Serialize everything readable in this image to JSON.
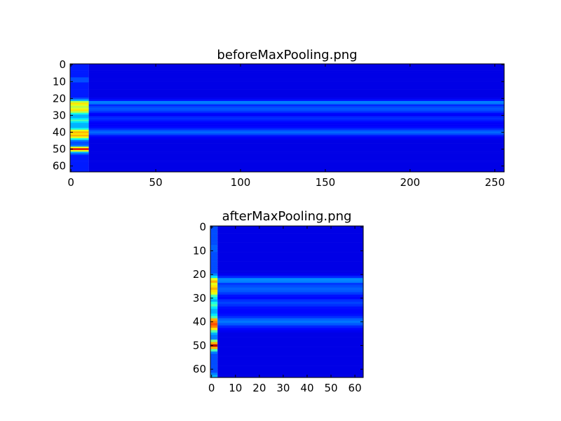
{
  "chart_data": [
    {
      "type": "heatmap",
      "title": "beforeMaxPooling.png",
      "colormap": "jet",
      "shape": [
        64,
        256
      ],
      "xlim": [
        -0.5,
        255.5
      ],
      "ylim": [
        63.5,
        -0.5
      ],
      "xticks": [
        0,
        50,
        100,
        150,
        200,
        250
      ],
      "yticks": [
        0,
        10,
        20,
        30,
        40,
        50,
        60
      ],
      "strip_columns": [
        0,
        10
      ],
      "row_intensity_strip": [
        0.15,
        0.15,
        0.15,
        0.15,
        0.15,
        0.15,
        0.15,
        0.15,
        0.2,
        0.2,
        0.2,
        0.15,
        0.15,
        0.15,
        0.15,
        0.15,
        0.15,
        0.15,
        0.15,
        0.15,
        0.2,
        0.3,
        0.55,
        0.65,
        0.6,
        0.55,
        0.6,
        0.65,
        0.55,
        0.4,
        0.3,
        0.3,
        0.35,
        0.45,
        0.35,
        0.3,
        0.3,
        0.3,
        0.4,
        0.6,
        0.7,
        0.65,
        0.7,
        0.6,
        0.4,
        0.25,
        0.2,
        0.2,
        0.25,
        0.6,
        0.9,
        0.6,
        0.3,
        0.2,
        0.15,
        0.15,
        0.15,
        0.15,
        0.15,
        0.15,
        0.15,
        0.15,
        0.15,
        0.15
      ],
      "row_intensity_rest": [
        0.1,
        0.1,
        0.1,
        0.1,
        0.1,
        0.1,
        0.1,
        0.1,
        0.1,
        0.1,
        0.1,
        0.1,
        0.1,
        0.1,
        0.1,
        0.1,
        0.1,
        0.1,
        0.1,
        0.1,
        0.11,
        0.14,
        0.25,
        0.24,
        0.16,
        0.19,
        0.21,
        0.2,
        0.17,
        0.13,
        0.12,
        0.16,
        0.17,
        0.15,
        0.13,
        0.12,
        0.12,
        0.13,
        0.16,
        0.2,
        0.23,
        0.2,
        0.15,
        0.12,
        0.11,
        0.1,
        0.1,
        0.1,
        0.1,
        0.1,
        0.1,
        0.1,
        0.1,
        0.1,
        0.1,
        0.1,
        0.1,
        0.1,
        0.1,
        0.1,
        0.1,
        0.1,
        0.1,
        0.1
      ]
    },
    {
      "type": "heatmap",
      "title": "afterMaxPooling.png",
      "colormap": "jet",
      "shape": [
        64,
        64
      ],
      "xlim": [
        -0.5,
        63.5
      ],
      "ylim": [
        63.5,
        -0.5
      ],
      "xticks": [
        0,
        10,
        20,
        30,
        40,
        50,
        60
      ],
      "yticks": [
        0,
        10,
        20,
        30,
        40,
        50,
        60
      ],
      "strip_columns": [
        0,
        2
      ],
      "row_intensity_strip": [
        0.2,
        0.2,
        0.2,
        0.2,
        0.2,
        0.2,
        0.2,
        0.2,
        0.22,
        0.22,
        0.22,
        0.2,
        0.2,
        0.2,
        0.2,
        0.2,
        0.2,
        0.2,
        0.2,
        0.2,
        0.25,
        0.35,
        0.6,
        0.7,
        0.6,
        0.65,
        0.7,
        0.65,
        0.6,
        0.45,
        0.35,
        0.3,
        0.4,
        0.45,
        0.35,
        0.3,
        0.3,
        0.35,
        0.45,
        0.7,
        0.75,
        0.8,
        0.75,
        0.65,
        0.45,
        0.3,
        0.25,
        0.25,
        0.5,
        0.7,
        0.95,
        0.7,
        0.45,
        0.25,
        0.2,
        0.2,
        0.2,
        0.2,
        0.2,
        0.2,
        0.2,
        0.2,
        0.25,
        0.3
      ],
      "row_intensity_rest": [
        0.1,
        0.1,
        0.1,
        0.1,
        0.1,
        0.1,
        0.1,
        0.1,
        0.1,
        0.1,
        0.1,
        0.1,
        0.1,
        0.1,
        0.1,
        0.1,
        0.1,
        0.1,
        0.1,
        0.1,
        0.11,
        0.16,
        0.26,
        0.25,
        0.18,
        0.2,
        0.22,
        0.21,
        0.18,
        0.14,
        0.13,
        0.17,
        0.19,
        0.17,
        0.14,
        0.13,
        0.13,
        0.14,
        0.17,
        0.22,
        0.24,
        0.21,
        0.16,
        0.13,
        0.11,
        0.1,
        0.1,
        0.1,
        0.1,
        0.1,
        0.1,
        0.1,
        0.1,
        0.1,
        0.1,
        0.1,
        0.1,
        0.1,
        0.1,
        0.1,
        0.1,
        0.1,
        0.1,
        0.1
      ]
    }
  ]
}
